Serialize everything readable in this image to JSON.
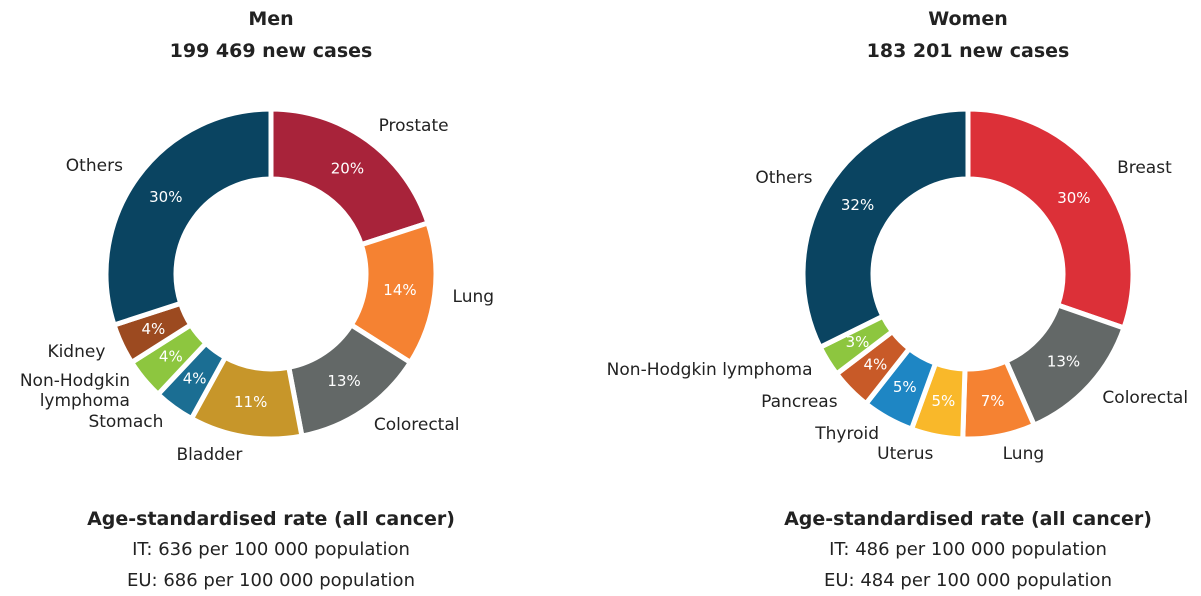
{
  "chart_data": [
    {
      "type": "donut",
      "title": "Men",
      "subtitle": "199 469 new cases",
      "categories": [
        "Prostate",
        "Lung",
        "Colorectal",
        "Bladder",
        "Stomach",
        "Non-Hodgkin\nlymphoma",
        "Kidney",
        "Others"
      ],
      "values": [
        20,
        14,
        13,
        11,
        4,
        4,
        4,
        30
      ],
      "value_labels": [
        "20%",
        "14%",
        "13%",
        "11%",
        "4%",
        "4%",
        "4%",
        "30%"
      ],
      "colors": [
        "#a8233a",
        "#f58232",
        "#636867",
        "#c7962a",
        "#1b6e93",
        "#8dc63f",
        "#9c4a20",
        "#0a4461"
      ],
      "rate_title": "Age-standardised rate (all cancer)",
      "rate_lines": [
        "IT: 636 per 100 000 population",
        "EU: 686 per 100 000 population"
      ]
    },
    {
      "type": "donut",
      "title": "Women",
      "subtitle": "183 201 new cases",
      "categories": [
        "Breast",
        "Colorectal",
        "Lung",
        "Uterus",
        "Thyroid",
        "Pancreas",
        "Non-Hodgkin lymphoma",
        "Others"
      ],
      "values": [
        30,
        13,
        7,
        5,
        5,
        4,
        3,
        32
      ],
      "value_labels": [
        "30%",
        "13%",
        "7%",
        "5%",
        "5%",
        "4%",
        "3%",
        "32%"
      ],
      "colors": [
        "#dc3038",
        "#636867",
        "#f58232",
        "#f9b82a",
        "#1e86c4",
        "#c85a28",
        "#8dc63f",
        "#0a4461"
      ],
      "rate_title": "Age-standardised rate (all cancer)",
      "rate_lines": [
        "IT: 486 per 100 000 population",
        "EU: 484 per 100 000 population"
      ]
    }
  ]
}
